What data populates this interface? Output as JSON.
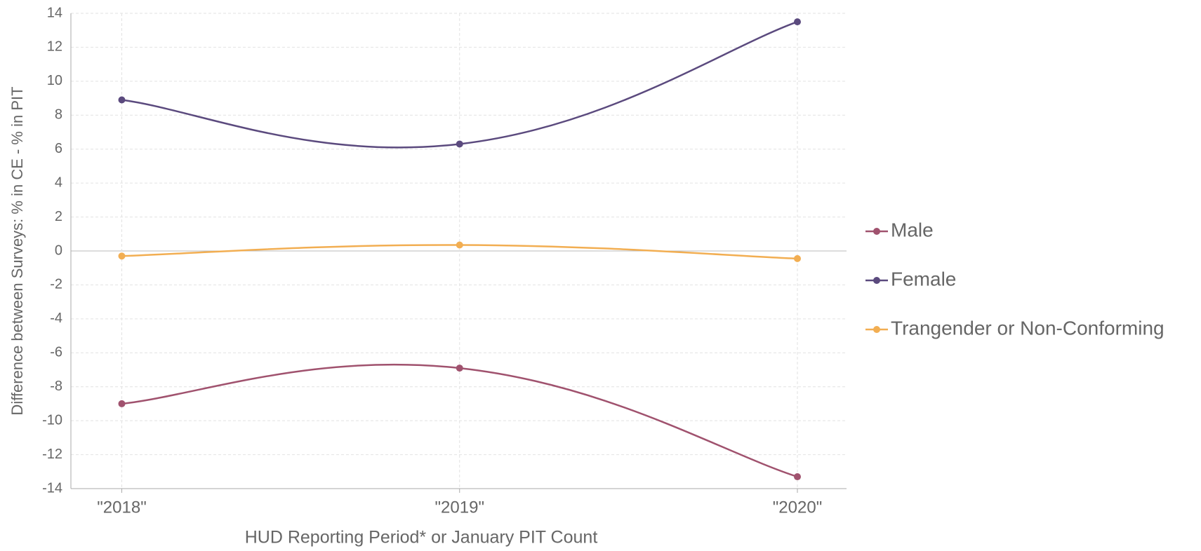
{
  "chart_data": {
    "type": "line",
    "x_label": "HUD Reporting Period* or January PIT Count",
    "y_label": "Difference between Surveys: % in CE - % in PIT",
    "categories": [
      "\"2018\"",
      "\"2019\"",
      "\"2020\""
    ],
    "series": [
      {
        "name": "Male",
        "color": "#a0526e",
        "values": [
          -9.0,
          -6.9,
          -13.3
        ]
      },
      {
        "name": "Female",
        "color": "#5b4a7e",
        "values": [
          8.9,
          6.3,
          13.5
        ]
      },
      {
        "name": "Trangender or Non-Conforming",
        "color": "#f2ae52",
        "values": [
          -0.3,
          0.35,
          -0.45
        ]
      }
    ],
    "ylim": [
      -14,
      14
    ],
    "yticks": [
      -14,
      -12,
      -10,
      -8,
      -6,
      -4,
      -2,
      0,
      2,
      4,
      6,
      8,
      10,
      12,
      14
    ],
    "grid": true,
    "legend": "right"
  }
}
